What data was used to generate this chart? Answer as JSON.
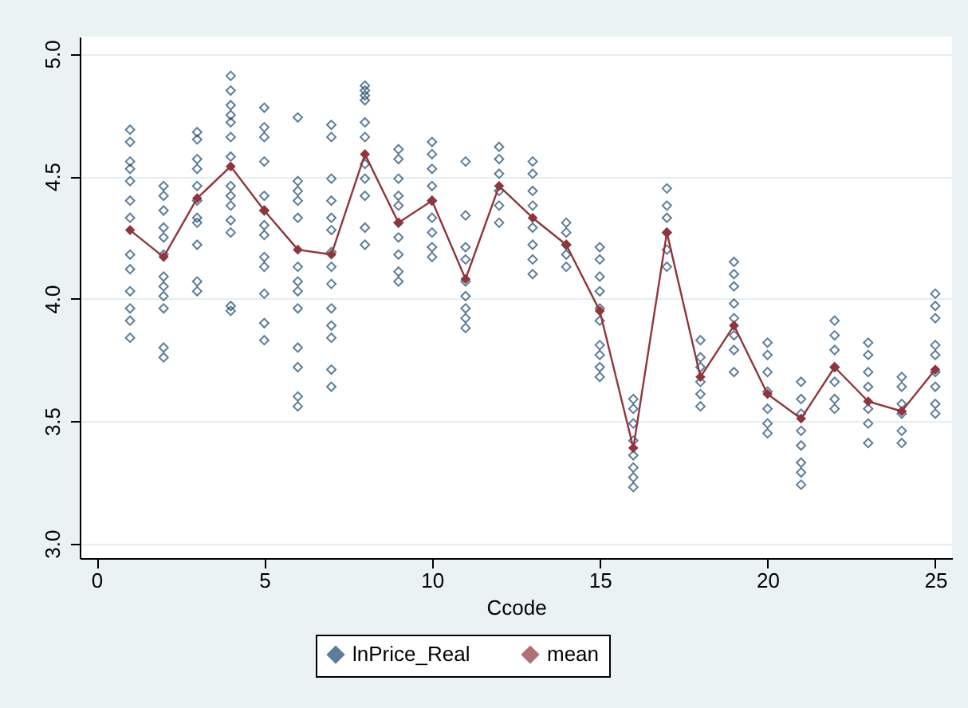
{
  "chart_data": {
    "type": "scatter",
    "xlabel": "Ccode",
    "xlim": [
      -0.5,
      25.5
    ],
    "xticks": [
      0,
      5,
      10,
      15,
      20,
      25
    ],
    "ylim": [
      2.94,
      5.07
    ],
    "yticks": [
      {
        "value": 3,
        "label": "3.0"
      },
      3.5,
      {
        "value": 4,
        "label": "4.0"
      },
      4.5,
      {
        "value": 5,
        "label": "5.0"
      }
    ],
    "grid": "y",
    "legend": "bottom",
    "series": [
      {
        "name": "lnPrice_Real",
        "marker": "diamond",
        "color": "#1a476f",
        "x": [
          1,
          1,
          1,
          1,
          1,
          1,
          1,
          1,
          1,
          1,
          1,
          1,
          1,
          2,
          2,
          2,
          2,
          2,
          2,
          2,
          2,
          2,
          2,
          2,
          2,
          3,
          3,
          3,
          3,
          3,
          3,
          3,
          3,
          3,
          3,
          3,
          4,
          4,
          4,
          4,
          4,
          4,
          4,
          4,
          4,
          4,
          4,
          4,
          4,
          4,
          5,
          5,
          5,
          5,
          5,
          5,
          5,
          5,
          5,
          5,
          5,
          5,
          5,
          6,
          6,
          6,
          6,
          6,
          6,
          6,
          6,
          6,
          6,
          6,
          6,
          6,
          7,
          7,
          7,
          7,
          7,
          7,
          7,
          7,
          7,
          7,
          7,
          7,
          7,
          7,
          8,
          8,
          8,
          8,
          8,
          8,
          8,
          8,
          8,
          8,
          8,
          9,
          9,
          9,
          9,
          9,
          9,
          9,
          9,
          9,
          9,
          10,
          10,
          10,
          10,
          10,
          10,
          10,
          10,
          10,
          11,
          11,
          11,
          11,
          11,
          11,
          11,
          11,
          11,
          12,
          12,
          12,
          12,
          12,
          12,
          13,
          13,
          13,
          13,
          13,
          13,
          13,
          13,
          14,
          14,
          14,
          14,
          14,
          15,
          15,
          15,
          15,
          15,
          15,
          15,
          15,
          15,
          15,
          16,
          16,
          16,
          16,
          16,
          16,
          16,
          16,
          17,
          17,
          17,
          17,
          17,
          17,
          18,
          18,
          18,
          18,
          18,
          18,
          19,
          19,
          19,
          19,
          19,
          19,
          19,
          19,
          20,
          20,
          20,
          20,
          20,
          20,
          20,
          21,
          21,
          21,
          21,
          21,
          21,
          21,
          21,
          22,
          22,
          22,
          22,
          22,
          22,
          22,
          23,
          23,
          23,
          23,
          23,
          23,
          23,
          24,
          24,
          24,
          24,
          24,
          24,
          25,
          25,
          25,
          25,
          25,
          25,
          25,
          25,
          25
        ],
        "values": [
          4.69,
          4.64,
          4.56,
          4.53,
          4.48,
          4.4,
          4.33,
          4.18,
          4.12,
          4.03,
          3.96,
          3.91,
          3.84,
          4.46,
          4.42,
          4.36,
          4.29,
          4.25,
          4.18,
          4.09,
          4.05,
          4.01,
          3.96,
          3.8,
          3.76,
          4.68,
          4.65,
          4.57,
          4.53,
          4.46,
          4.4,
          4.33,
          4.31,
          4.22,
          4.07,
          4.03,
          4.91,
          4.85,
          4.79,
          4.75,
          4.72,
          4.66,
          4.58,
          4.46,
          4.42,
          4.38,
          4.32,
          4.27,
          3.97,
          3.95,
          4.78,
          4.7,
          4.66,
          4.56,
          4.42,
          4.36,
          4.3,
          4.26,
          4.17,
          4.13,
          4.02,
          3.9,
          3.83,
          4.74,
          4.48,
          4.44,
          4.4,
          4.33,
          4.13,
          4.07,
          4.03,
          3.96,
          3.8,
          3.72,
          3.6,
          3.56,
          4.71,
          4.66,
          4.49,
          4.4,
          4.33,
          4.28,
          4.19,
          4.13,
          4.06,
          3.96,
          3.89,
          3.84,
          3.71,
          3.64,
          4.87,
          4.85,
          4.83,
          4.81,
          4.72,
          4.66,
          4.55,
          4.49,
          4.42,
          4.29,
          4.22,
          4.61,
          4.57,
          4.49,
          4.42,
          4.38,
          4.31,
          4.25,
          4.18,
          4.11,
          4.07,
          4.64,
          4.59,
          4.53,
          4.46,
          4.4,
          4.33,
          4.27,
          4.21,
          4.17,
          4.56,
          4.34,
          4.21,
          4.16,
          4.07,
          4.01,
          3.96,
          3.92,
          3.88,
          4.62,
          4.57,
          4.51,
          4.44,
          4.38,
          4.31,
          4.56,
          4.51,
          4.44,
          4.38,
          4.29,
          4.22,
          4.16,
          4.1,
          4.31,
          4.27,
          4.22,
          4.18,
          4.13,
          4.21,
          4.16,
          4.09,
          4.03,
          3.96,
          3.91,
          3.81,
          3.77,
          3.72,
          3.68,
          3.59,
          3.55,
          3.49,
          3.42,
          3.36,
          3.31,
          3.27,
          3.23,
          4.45,
          4.38,
          4.33,
          4.27,
          4.2,
          4.13,
          3.83,
          3.76,
          3.72,
          3.66,
          3.61,
          3.56,
          4.15,
          4.1,
          4.05,
          3.98,
          3.92,
          3.85,
          3.79,
          3.7,
          3.82,
          3.77,
          3.7,
          3.62,
          3.55,
          3.49,
          3.45,
          3.66,
          3.59,
          3.53,
          3.46,
          3.4,
          3.33,
          3.29,
          3.24,
          3.91,
          3.85,
          3.79,
          3.72,
          3.66,
          3.59,
          3.55,
          3.82,
          3.77,
          3.7,
          3.64,
          3.55,
          3.49,
          3.41,
          3.68,
          3.64,
          3.57,
          3.53,
          3.46,
          3.41,
          4.02,
          3.97,
          3.92,
          3.81,
          3.77,
          3.7,
          3.64,
          3.57,
          3.53
        ]
      },
      {
        "name": "mean",
        "type": "line",
        "marker": "diamond",
        "line_style": "solid",
        "color": "#90353b",
        "x": [
          1,
          2,
          3,
          4,
          5,
          6,
          7,
          8,
          9,
          10,
          11,
          12,
          13,
          14,
          15,
          16,
          17,
          18,
          19,
          20,
          21,
          22,
          23,
          24,
          25
        ],
        "values": [
          4.28,
          4.17,
          4.41,
          4.54,
          4.36,
          4.2,
          4.18,
          4.59,
          4.31,
          4.4,
          4.08,
          4.46,
          4.33,
          4.22,
          3.95,
          3.39,
          4.27,
          3.68,
          3.89,
          3.61,
          3.51,
          3.72,
          3.58,
          3.54,
          3.71
        ]
      }
    ]
  }
}
